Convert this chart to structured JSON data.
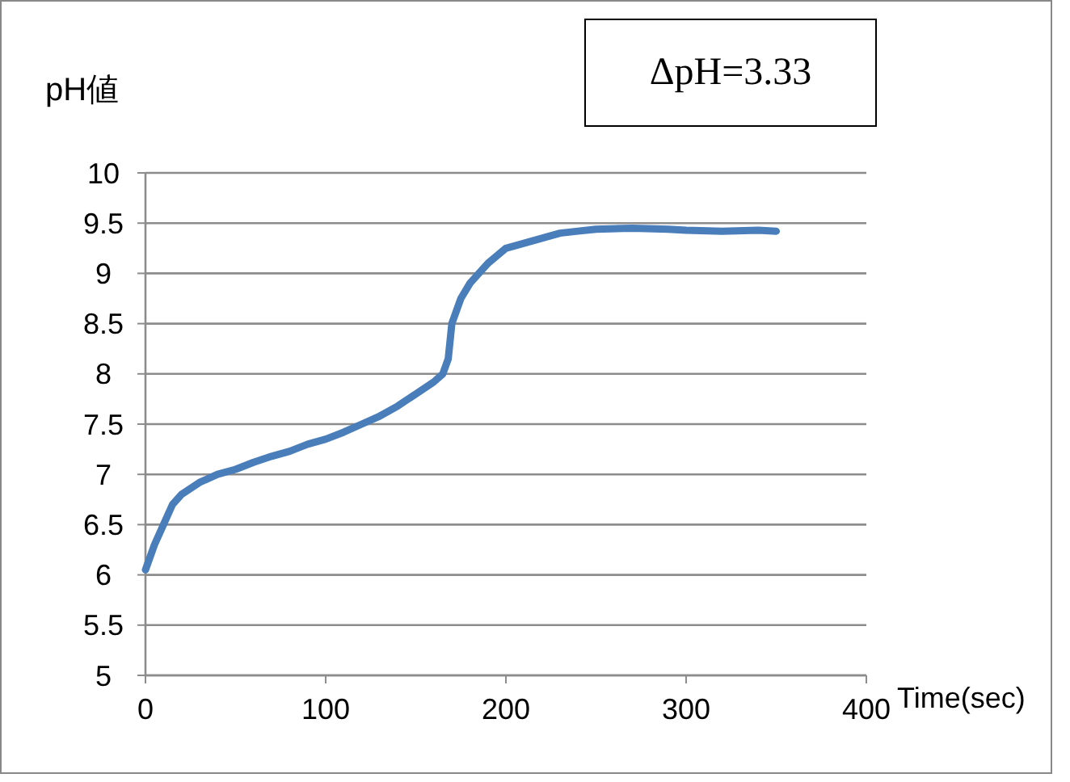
{
  "chart_data": {
    "type": "line",
    "xlabel": "Time(sec)",
    "ylabel": "pH値",
    "annotations": [
      "ΔpH=3.33"
    ],
    "x": [
      0,
      5,
      10,
      15,
      20,
      30,
      40,
      50,
      60,
      70,
      80,
      90,
      100,
      110,
      120,
      130,
      140,
      150,
      160,
      165,
      168,
      170,
      175,
      180,
      190,
      200,
      210,
      220,
      230,
      240,
      250,
      270,
      290,
      300,
      320,
      340,
      350
    ],
    "series": [
      {
        "color": "#4a7ebb",
        "values": [
          6.05,
          6.3,
          6.5,
          6.7,
          6.8,
          6.92,
          7.0,
          7.05,
          7.12,
          7.18,
          7.23,
          7.3,
          7.35,
          7.42,
          7.5,
          7.58,
          7.68,
          7.8,
          7.92,
          8.0,
          8.15,
          8.5,
          8.75,
          8.9,
          9.1,
          9.25,
          9.3,
          9.35,
          9.4,
          9.42,
          9.44,
          9.45,
          9.44,
          9.43,
          9.42,
          9.43,
          9.42
        ]
      }
    ],
    "xlim": [
      0,
      400
    ],
    "xticks": [
      0,
      100,
      200,
      300,
      400
    ],
    "ylim": [
      5,
      10
    ],
    "yticks": [
      5,
      5.5,
      6,
      6.5,
      7,
      7.5,
      8,
      8.5,
      9,
      9.5,
      10
    ],
    "grid": "y",
    "marker": "none",
    "line_style": "solid"
  }
}
